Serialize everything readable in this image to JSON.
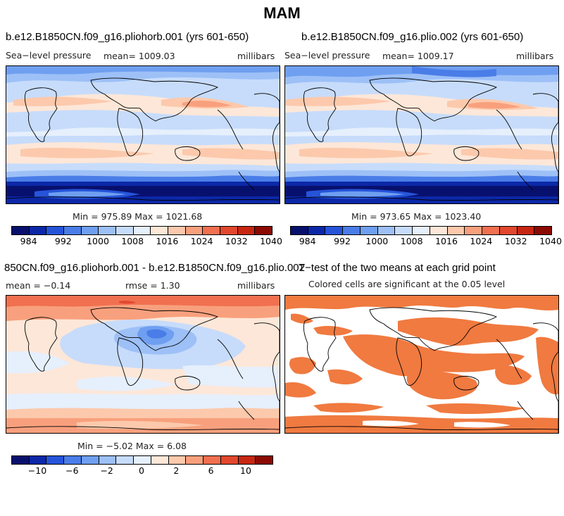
{
  "figure_title": "MAM",
  "palette": {
    "levels": [
      "#08106e",
      "#0c28a8",
      "#2654d9",
      "#4a7de8",
      "#6f9ff0",
      "#9dc0f7",
      "#c7dcfb",
      "#e6effc",
      "#fde7d8",
      "#fcc9ac",
      "#f8a07d",
      "#f07050",
      "#e2482d",
      "#c72712",
      "#8b0a04"
    ],
    "significant": "#f07a40",
    "land_outline": "#000000"
  },
  "panels": {
    "top_left": {
      "title": "b.e12.B1850CN.f09_g16.pliohorb.001 (yrs 601-650)",
      "variable": "Sea−level pressure",
      "mean_label": "mean= 1009.03",
      "units": "millibars",
      "minmax": "Min = 975.89 Max = 1021.68",
      "colorbar_ticks": [
        "984",
        "992",
        "1000",
        "1008",
        "1016",
        "1024",
        "1032",
        "1040"
      ]
    },
    "top_right": {
      "title": "b.e12.B1850CN.f09_g16.plio.002 (yrs 601-650)",
      "variable": "Sea−level pressure",
      "mean_label": "mean= 1009.17",
      "units": "millibars",
      "minmax": "Min = 973.65 Max = 1023.40",
      "colorbar_ticks": [
        "984",
        "992",
        "1000",
        "1008",
        "1016",
        "1024",
        "1032",
        "1040"
      ]
    },
    "bottom_left": {
      "title": "850CN.f09_g16.pliohorb.001 - b.e12.B1850CN.f09_g16.plio.002",
      "mean_label": "mean =  −0.14",
      "rmse_label": "rmse =    1.30",
      "units": "millibars",
      "minmax": "Min =  −5.02 Max =   6.08",
      "colorbar_ticks": [
        "−10",
        "−6",
        "−2",
        "0",
        "2",
        "6",
        "10"
      ]
    },
    "bottom_right": {
      "title": "T−test of the two means at each grid point",
      "subtitle": "Colored cells are significant at the 0.05 level"
    }
  },
  "chart_data": [
    {
      "type": "heatmap",
      "title": "b.e12.B1850CN.f09_g16.pliohorb.001 (yrs 601-650)",
      "variable": "Sea-level pressure",
      "units": "millibars",
      "mean": 1009.03,
      "min": 975.89,
      "max": 1021.68,
      "contour_levels": [
        980,
        984,
        988,
        992,
        996,
        1000,
        1004,
        1008,
        1012,
        1016,
        1020,
        1024,
        1028,
        1032,
        1036,
        1040
      ],
      "zonal_pattern": [
        {
          "lat": 80,
          "value": 1011
        },
        {
          "lat": 60,
          "value": 1008
        },
        {
          "lat": 40,
          "value": 1017
        },
        {
          "lat": 25,
          "value": 1016
        },
        {
          "lat": 0,
          "value": 1010
        },
        {
          "lat": -30,
          "value": 1018
        },
        {
          "lat": -50,
          "value": 996
        },
        {
          "lat": -60,
          "value": 982
        },
        {
          "lat": -80,
          "value": 1006
        }
      ]
    },
    {
      "type": "heatmap",
      "title": "b.e12.B1850CN.f09_g16.plio.002 (yrs 601-650)",
      "variable": "Sea-level pressure",
      "units": "millibars",
      "mean": 1009.17,
      "min": 973.65,
      "max": 1023.4,
      "contour_levels": [
        980,
        984,
        988,
        992,
        996,
        1000,
        1004,
        1008,
        1012,
        1016,
        1020,
        1024,
        1028,
        1032,
        1036,
        1040
      ],
      "zonal_pattern": [
        {
          "lat": 80,
          "value": 1008
        },
        {
          "lat": 60,
          "value": 1006
        },
        {
          "lat": 40,
          "value": 1018
        },
        {
          "lat": 25,
          "value": 1016
        },
        {
          "lat": 0,
          "value": 1010
        },
        {
          "lat": -30,
          "value": 1018
        },
        {
          "lat": -50,
          "value": 995
        },
        {
          "lat": -60,
          "value": 980
        },
        {
          "lat": -80,
          "value": 1005
        }
      ]
    },
    {
      "type": "heatmap",
      "title": "pliohorb.001 - plio.002",
      "units": "millibars",
      "mean": -0.14,
      "rmse": 1.3,
      "min": -5.02,
      "max": 6.08,
      "contour_levels": [
        -12,
        -10,
        -8,
        -6,
        -4,
        -2,
        -1,
        0,
        1,
        2,
        4,
        6,
        8,
        10,
        12
      ]
    },
    {
      "type": "heatmap",
      "title": "T-test of the two means at each grid point",
      "significance_level": 0.05
    }
  ]
}
